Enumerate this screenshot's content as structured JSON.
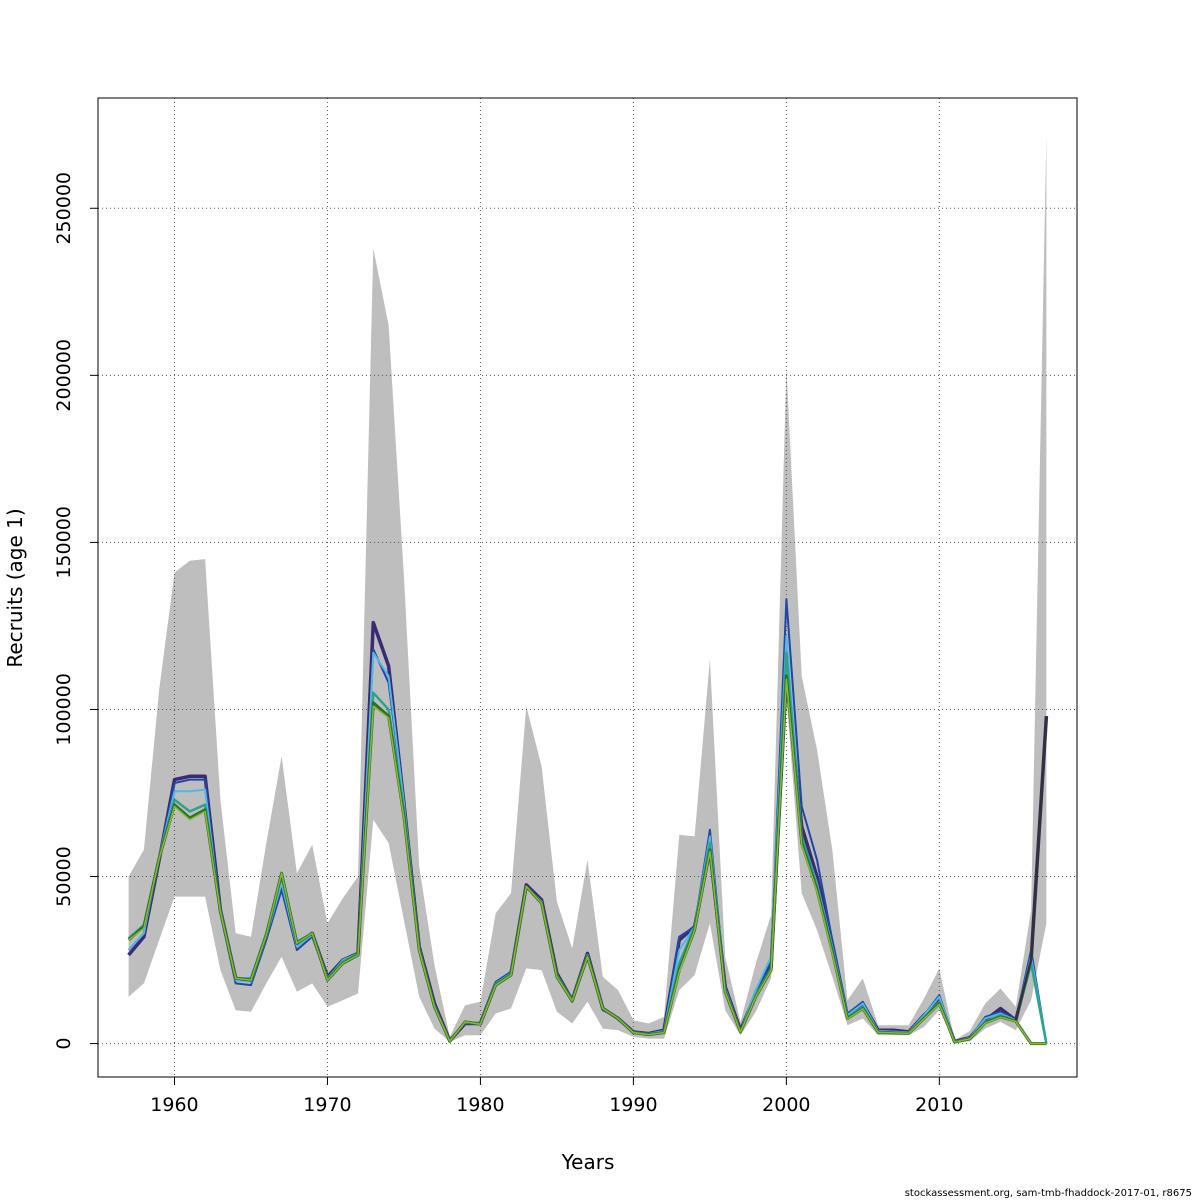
{
  "chart_data": {
    "type": "line",
    "title": "",
    "xlabel": "Years",
    "ylabel": "Recruits (age 1)",
    "xlim": [
      1955,
      2019
    ],
    "ylim": [
      -10000,
      283000
    ],
    "x_ticks": [
      1960,
      1970,
      1980,
      1990,
      2000,
      2010
    ],
    "y_ticks": [
      0,
      50000,
      100000,
      150000,
      200000,
      250000
    ],
    "grid": true,
    "legend": "none",
    "band_color": "#bebebe",
    "confidence_band": {
      "x": [
        1957,
        1958,
        1959,
        1960,
        1961,
        1962,
        1963,
        1964,
        1965,
        1966,
        1967,
        1968,
        1969,
        1970,
        1971,
        1972,
        1973,
        1974,
        1975,
        1976,
        1977,
        1978,
        1979,
        1980,
        1981,
        1982,
        1983,
        1984,
        1985,
        1986,
        1987,
        1988,
        1989,
        1990,
        1991,
        1992,
        1993,
        1994,
        1995,
        1996,
        1997,
        1998,
        1999,
        2000,
        2001,
        2002,
        2003,
        2004,
        2005,
        2006,
        2007,
        2008,
        2009,
        2010,
        2011,
        2012,
        2013,
        2014,
        2015,
        2016,
        2017
      ],
      "lower": [
        14000,
        18000,
        31000,
        44000,
        44000,
        44000,
        22000,
        10000,
        9500,
        18000,
        26000,
        15500,
        18000,
        11000,
        13000,
        15000,
        67000,
        60000,
        37000,
        14000,
        4500,
        500,
        2500,
        2500,
        9000,
        10500,
        22500,
        22000,
        9500,
        6000,
        12500,
        4500,
        4000,
        2000,
        1500,
        1500,
        16000,
        20500,
        36000,
        10000,
        2500,
        9500,
        19500,
        104000,
        45000,
        34000,
        20000,
        5500,
        7500,
        2500,
        2500,
        2500,
        5000,
        10000,
        300,
        700,
        4500,
        6500,
        4000,
        13000,
        36000
      ],
      "upper": [
        50000,
        58000,
        106000,
        141000,
        144500,
        145000,
        73000,
        33000,
        32000,
        60000,
        86000,
        51000,
        59500,
        36000,
        43500,
        50000,
        238000,
        215000,
        140000,
        53000,
        23500,
        2000,
        11500,
        12500,
        39000,
        45000,
        101000,
        83000,
        42500,
        28500,
        55000,
        20000,
        16000,
        7000,
        6000,
        8000,
        62500,
        62000,
        115000,
        26000,
        6500,
        24000,
        38500,
        202000,
        110000,
        88000,
        58000,
        13000,
        19500,
        5500,
        5500,
        5500,
        13500,
        22500,
        1000,
        3800,
        12000,
        16500,
        11000,
        40000,
        272000
      ]
    },
    "series": [
      {
        "color": "#3a2b73",
        "values": [
          26500,
          32000,
          55000,
          79000,
          80000,
          80000,
          40000,
          19500,
          19000,
          32000,
          48000,
          29500,
          33000,
          20000,
          25000,
          27000,
          126000,
          113000,
          72000,
          29000,
          12000,
          800,
          6000,
          6000,
          18000,
          21000,
          47500,
          43000,
          21000,
          13000,
          27000,
          10500,
          7500,
          3500,
          3000,
          4000,
          31000,
          35000,
          58000,
          17000,
          4000,
          15000,
          23000,
          110000,
          65000,
          50000,
          30000,
          8000,
          12000,
          4000,
          4000,
          3500,
          8500,
          13000,
          600,
          1800,
          7000,
          10500,
          7000,
          25000,
          98000
        ]
      },
      {
        "color": "#2146a8",
        "values": [
          28000,
          33000,
          55000,
          78000,
          79000,
          79000,
          39000,
          18000,
          17500,
          31000,
          46000,
          28000,
          32000,
          19500,
          24500,
          26500,
          118000,
          108000,
          72000,
          28500,
          11500,
          700,
          6000,
          5800,
          18500,
          21500,
          47000,
          42500,
          20000,
          12500,
          26000,
          10000,
          7800,
          3400,
          2800,
          3600,
          32000,
          35000,
          64000,
          17000,
          3800,
          16000,
          24500,
          133000,
          71000,
          55000,
          31000,
          9000,
          12500,
          3600,
          3400,
          3300,
          8500,
          14500,
          500,
          1600,
          8000,
          9500,
          7000,
          28000,
          0
        ]
      },
      {
        "color": "#4fb8e8",
        "values": [
          28000,
          33000,
          56000,
          75500,
          75500,
          76000,
          39000,
          19000,
          18500,
          32000,
          48000,
          29000,
          32500,
          19500,
          25000,
          27000,
          117000,
          110000,
          72000,
          28500,
          11500,
          700,
          6200,
          6000,
          18000,
          21000,
          47000,
          42500,
          20500,
          13000,
          26500,
          10500,
          7600,
          3400,
          2900,
          3800,
          28000,
          35000,
          62000,
          16500,
          3700,
          16000,
          26000,
          122000,
          62000,
          48000,
          29000,
          8500,
          12000,
          3800,
          3600,
          3400,
          8500,
          14000,
          550,
          1700,
          7500,
          9000,
          7000,
          26000,
          0
        ]
      },
      {
        "color": "#2aa48a",
        "values": [
          31500,
          35500,
          56000,
          73000,
          69500,
          71500,
          40000,
          19500,
          19500,
          33000,
          50500,
          30500,
          33000,
          19500,
          24500,
          27000,
          105000,
          100000,
          70000,
          28500,
          11000,
          700,
          6500,
          6000,
          18000,
          21000,
          47000,
          42000,
          20500,
          13000,
          26500,
          10500,
          7600,
          3400,
          2800,
          3500,
          24000,
          35000,
          60000,
          16000,
          3600,
          14500,
          22500,
          117000,
          62000,
          47000,
          28000,
          7800,
          11000,
          3500,
          3300,
          3200,
          7700,
          12500,
          500,
          1500,
          6500,
          8500,
          6800,
          24000,
          0
        ]
      },
      {
        "color": "#2f6e2f",
        "values": [
          31000,
          35000,
          55500,
          71500,
          67500,
          70000,
          39500,
          19500,
          19000,
          32500,
          51000,
          30000,
          33000,
          19000,
          24000,
          26500,
          102000,
          98000,
          68000,
          28000,
          11000,
          700,
          6500,
          5800,
          17500,
          20500,
          47000,
          42000,
          20000,
          12800,
          26000,
          10500,
          7500,
          3300,
          2700,
          3300,
          22000,
          34000,
          58000,
          15500,
          3500,
          14000,
          22000,
          110000,
          60000,
          46000,
          27500,
          7500,
          10500,
          3400,
          3200,
          3100,
          7500,
          12000,
          480,
          1400,
          6200,
          8000,
          6700,
          0,
          0
        ]
      },
      {
        "color": "#8ab82e",
        "values": [
          31000,
          34500,
          55500,
          71000,
          67000,
          69500,
          39500,
          19500,
          19000,
          32500,
          51000,
          30000,
          33000,
          19000,
          24000,
          26500,
          101000,
          97500,
          67500,
          28000,
          11000,
          700,
          6500,
          5800,
          17500,
          20500,
          47000,
          42000,
          20000,
          12800,
          26000,
          10500,
          7500,
          3300,
          2700,
          3300,
          21500,
          34000,
          57500,
          15500,
          3500,
          14000,
          22000,
          109000,
          59500,
          45500,
          27000,
          7400,
          10400,
          3400,
          3200,
          3100,
          7400,
          11800,
          480,
          1400,
          6100,
          7900,
          6600,
          0,
          0
        ]
      },
      {
        "color": "#333333",
        "values": [
          null,
          null,
          null,
          null,
          null,
          null,
          null,
          null,
          null,
          null,
          null,
          null,
          null,
          null,
          null,
          null,
          null,
          null,
          null,
          null,
          null,
          null,
          null,
          null,
          null,
          null,
          null,
          null,
          null,
          null,
          null,
          null,
          null,
          null,
          null,
          null,
          null,
          null,
          null,
          null,
          null,
          null,
          null,
          null,
          null,
          null,
          null,
          null,
          null,
          null,
          null,
          null,
          null,
          null,
          null,
          null,
          null,
          null,
          7000,
          25000,
          98000
        ]
      }
    ]
  },
  "footer": {
    "source_note": "stockassessment.org, sam-tmb-fhaddock-2017-01, r8675"
  }
}
